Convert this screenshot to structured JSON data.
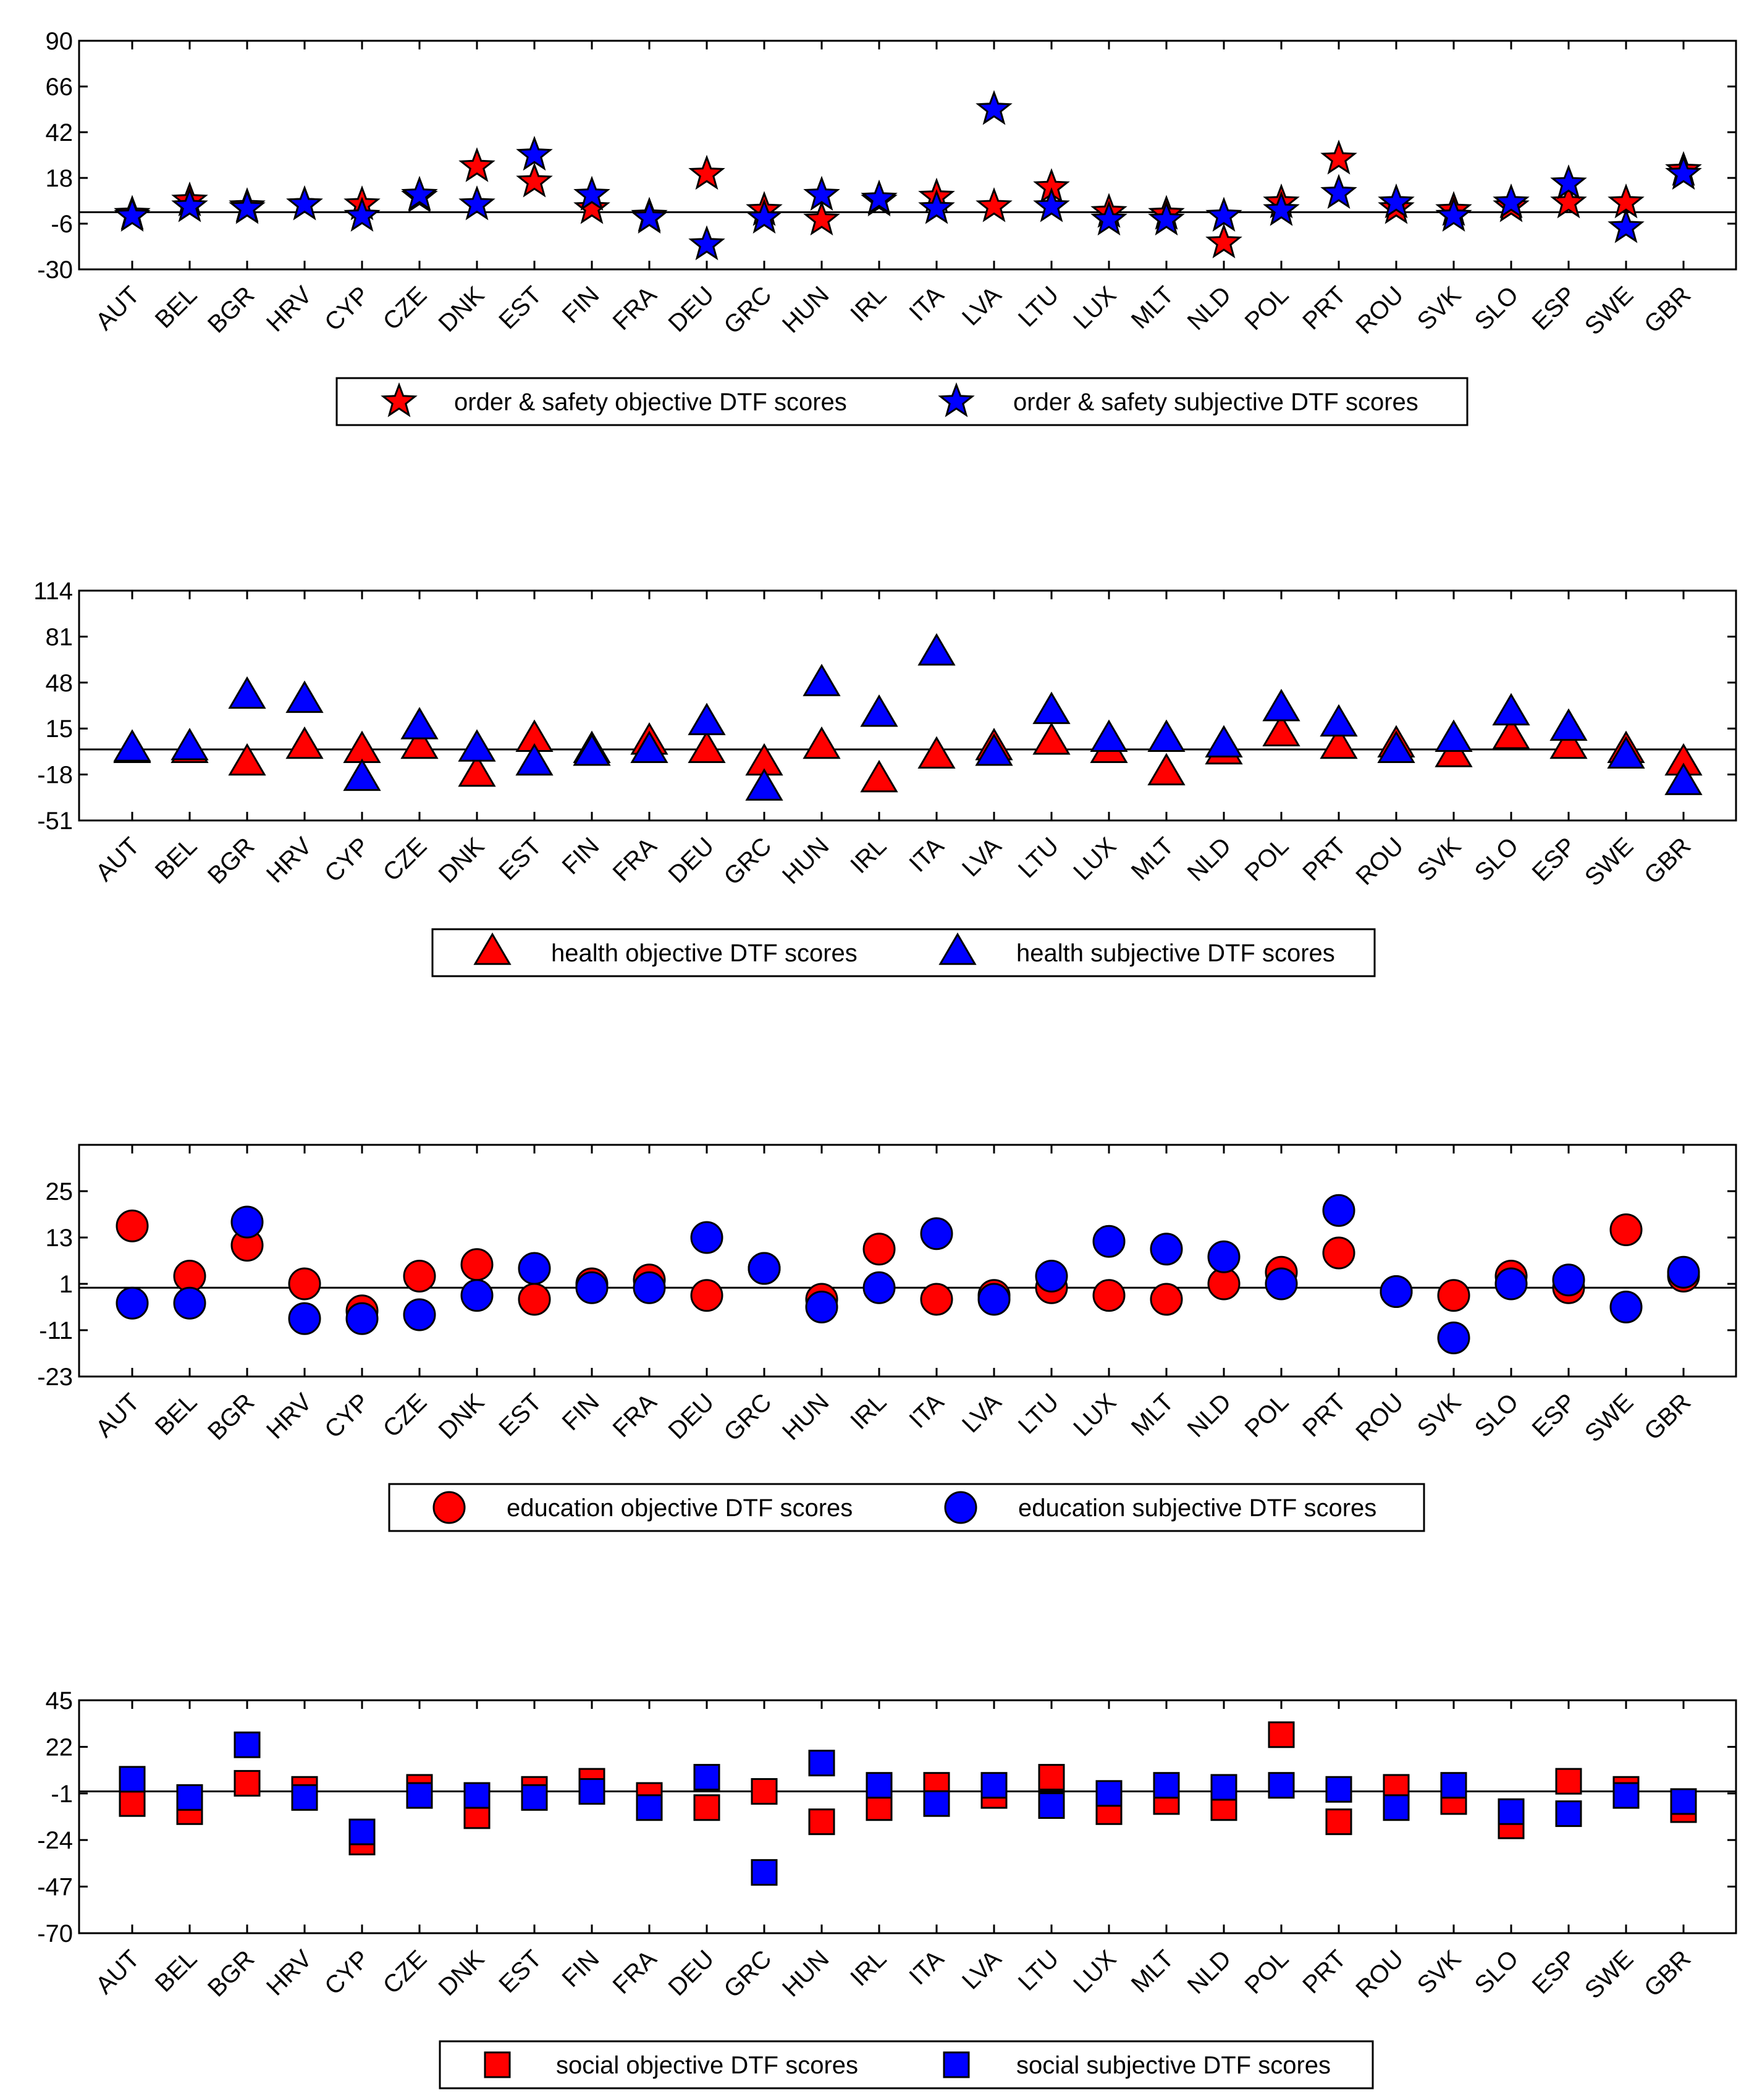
{
  "colors": {
    "objective": "#ff0000",
    "subjective": "#0000ff",
    "axis": "#000000",
    "background": "#ffffff"
  },
  "chart_data": [
    {
      "type": "scatter",
      "marker": "star",
      "categories": [
        "AUT",
        "BEL",
        "BGR",
        "HRV",
        "CYP",
        "CZE",
        "DNK",
        "EST",
        "FIN",
        "FRA",
        "DEU",
        "GRC",
        "HUN",
        "IRL",
        "ITA",
        "LVA",
        "LTU",
        "LUX",
        "MLT",
        "NLD",
        "POL",
        "PRT",
        "ROU",
        "SVK",
        "SLO",
        "ESP",
        "SWE",
        "GBR"
      ],
      "yticks": [
        90,
        66,
        42,
        18,
        -6,
        -30
      ],
      "ylim": [
        -30,
        90
      ],
      "zero_line": 0,
      "series": [
        {
          "name": "order & safety objective DTF scores",
          "color": "objective",
          "values": [
            -1,
            6,
            3,
            4,
            4,
            8,
            24,
            16,
            2,
            -2,
            20,
            1,
            -4,
            6,
            8,
            3,
            13,
            0,
            -1,
            -16,
            5,
            28,
            2,
            1,
            3,
            5,
            5,
            22
          ]
        },
        {
          "name": "order & safety subjective DTF scores",
          "color": "subjective",
          "values": [
            -2,
            3,
            2,
            4,
            -2,
            9,
            4,
            30,
            9,
            -3,
            -17,
            -3,
            9,
            7,
            2,
            54,
            3,
            -4,
            -4,
            -2,
            1,
            10,
            5,
            -2,
            5,
            15,
            -8,
            20
          ]
        }
      ],
      "legend": [
        "order & safety objective DTF scores",
        "order & safety subjective DTF scores"
      ]
    },
    {
      "type": "scatter",
      "marker": "triangle",
      "categories": [
        "AUT",
        "BEL",
        "BGR",
        "HRV",
        "CYP",
        "CZE",
        "DNK",
        "EST",
        "FIN",
        "FRA",
        "DEU",
        "GRC",
        "HUN",
        "IRL",
        "ITA",
        "LVA",
        "LTU",
        "LUX",
        "MLT",
        "NLD",
        "POL",
        "PRT",
        "ROU",
        "SVK",
        "SLO",
        "ESP",
        "SWE",
        "GBR"
      ],
      "yticks": [
        114,
        81,
        48,
        15,
        -18,
        -51
      ],
      "ylim": [
        -51,
        114
      ],
      "zero_line": 0,
      "series": [
        {
          "name": "health objective DTF scores",
          "color": "objective",
          "values": [
            -1,
            -1,
            -10,
            2,
            -1,
            2,
            -18,
            7,
            -1,
            5,
            -1,
            -10,
            2,
            -22,
            -5,
            1,
            5,
            -1,
            -17,
            -2,
            11,
            2,
            3,
            -4,
            9,
            2,
            -1,
            -10
          ]
        },
        {
          "name": "health subjective DTF scores",
          "color": "subjective",
          "values": [
            0,
            1,
            38,
            35,
            -21,
            16,
            0,
            -10,
            -3,
            -1,
            19,
            -28,
            47,
            25,
            69,
            -3,
            27,
            7,
            7,
            3,
            29,
            18,
            -1,
            7,
            26,
            15,
            -5,
            -24
          ]
        }
      ],
      "legend": [
        "health objective DTF scores",
        "health subjective DTF scores"
      ]
    },
    {
      "type": "scatter",
      "marker": "circle",
      "categories": [
        "AUT",
        "BEL",
        "BGR",
        "HRV",
        "CYP",
        "CZE",
        "DNK",
        "EST",
        "FIN",
        "FRA",
        "DEU",
        "GRC",
        "HUN",
        "IRL",
        "ITA",
        "LVA",
        "LTU",
        "LUX",
        "MLT",
        "NLD",
        "POL",
        "PRT",
        "ROU",
        "SVK",
        "SLO",
        "ESP",
        "SWE",
        "GBR"
      ],
      "yticks": [
        25,
        13,
        1,
        -11,
        -23
      ],
      "ylim": [
        -23,
        37
      ],
      "zero_line": 0,
      "series": [
        {
          "name": "education objective DTF scores",
          "color": "objective",
          "values": [
            16,
            3,
            11,
            1,
            -6,
            3,
            6,
            -3,
            1,
            2,
            -2,
            5,
            -3,
            10,
            -3,
            -2,
            0,
            -2,
            -3,
            1,
            4,
            9,
            -1,
            -2,
            3,
            0,
            15,
            3
          ]
        },
        {
          "name": "education subjective DTF scores",
          "color": "subjective",
          "values": [
            -4,
            -4,
            17,
            -8,
            -8,
            -7,
            -2,
            5,
            0,
            0,
            13,
            5,
            -5,
            0,
            14,
            -3,
            3,
            12,
            10,
            8,
            1,
            20,
            -1,
            -13,
            1,
            2,
            -5,
            4
          ]
        }
      ],
      "legend": [
        "education objective DTF scores",
        "education subjective DTF scores"
      ]
    },
    {
      "type": "scatter",
      "marker": "square",
      "categories": [
        "AUT",
        "BEL",
        "BGR",
        "HRV",
        "CYP",
        "CZE",
        "DNK",
        "EST",
        "FIN",
        "FRA",
        "DEU",
        "GRC",
        "HUN",
        "IRL",
        "ITA",
        "LVA",
        "LTU",
        "LUX",
        "MLT",
        "NLD",
        "POL",
        "PRT",
        "ROU",
        "SVK",
        "SLO",
        "ESP",
        "SWE",
        "GBR"
      ],
      "yticks": [
        45,
        22,
        -1,
        -24,
        -47,
        -70
      ],
      "ylim": [
        -70,
        45
      ],
      "zero_line": 0,
      "series": [
        {
          "name": "social objective DTF scores",
          "color": "objective",
          "values": [
            -6,
            -10,
            4,
            1,
            -25,
            2,
            -12,
            1,
            5,
            -2,
            -8,
            0,
            -15,
            -8,
            3,
            -2,
            7,
            -10,
            -5,
            -8,
            28,
            -15,
            2,
            -5,
            -17,
            5,
            1,
            -9
          ]
        },
        {
          "name": "social subjective DTF scores",
          "color": "subjective",
          "values": [
            6,
            -3,
            23,
            -3,
            -20,
            -2,
            -2,
            -3,
            0,
            -8,
            7,
            -40,
            14,
            3,
            -6,
            3,
            -7,
            -1,
            3,
            2,
            3,
            1,
            -8,
            3,
            -10,
            -11,
            -2,
            -5
          ]
        }
      ],
      "legend": [
        "social objective DTF scores",
        "social subjective DTF scores"
      ]
    }
  ]
}
